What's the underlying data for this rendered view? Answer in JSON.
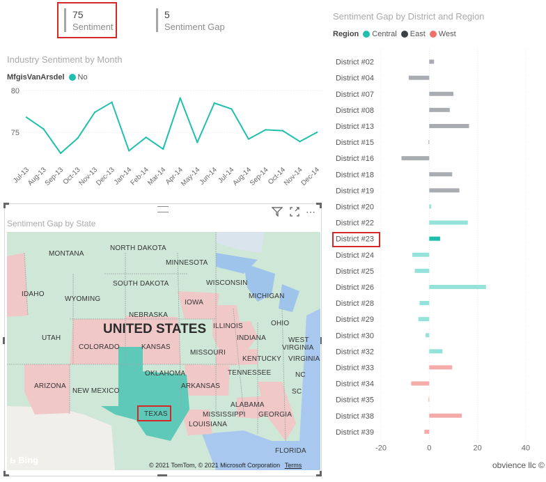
{
  "cards": [
    {
      "value": "75",
      "label": "Sentiment"
    },
    {
      "value": "5",
      "label": "Sentiment Gap"
    }
  ],
  "colors": {
    "teal": "#1fbfad",
    "teal_light": "#94e3db",
    "gray": "#a9acb0",
    "pink": "#f6abab",
    "dark": "#3c3f44",
    "west": "#f0716c",
    "highlight": "#d62728"
  },
  "chart_data": [
    {
      "type": "line",
      "title": "Industry Sentiment by Month",
      "legend_title": "MfgisVanArsdel",
      "legend": [
        {
          "name": "No",
          "color": "#1fbfad"
        }
      ],
      "x": [
        "Jul-13",
        "Aug-13",
        "Sep-13",
        "Oct-13",
        "Nov-13",
        "Dec-13",
        "Jan-14",
        "Feb-14",
        "Mar-14",
        "Apr-14",
        "May-14",
        "Jun-14",
        "Jul-14",
        "Aug-14",
        "Sep-14",
        "Oct-14",
        "Nov-14",
        "Dec-14"
      ],
      "series": [
        {
          "name": "No",
          "values": [
            76.8,
            75.4,
            72.5,
            74.3,
            77.4,
            78.6,
            72.8,
            74.4,
            73.0,
            79.1,
            73.8,
            78.5,
            77.8,
            74.2,
            75.3,
            75.2,
            73.9,
            75.0
          ]
        }
      ],
      "ylim": [
        71.5,
        80.5
      ],
      "yticks": [
        75,
        80
      ],
      "grid": true
    },
    {
      "type": "bar",
      "orientation": "horizontal",
      "title": "Sentiment Gap by District and Region",
      "legend_title": "Region",
      "legend": [
        {
          "name": "Central",
          "color": "#1fbfad"
        },
        {
          "name": "East",
          "color": "#3c3f44"
        },
        {
          "name": "West",
          "color": "#f0716c"
        }
      ],
      "categories": [
        "District #02",
        "District #04",
        "District #07",
        "District #08",
        "District #13",
        "District #15",
        "District #16",
        "District #18",
        "District #19",
        "District #20",
        "District #22",
        "District #23",
        "District #24",
        "District #25",
        "District #26",
        "District #28",
        "District #29",
        "District #30",
        "District #32",
        "District #33",
        "District #34",
        "District #35",
        "District #38",
        "District #39"
      ],
      "values": [
        2,
        -8.5,
        10,
        8.5,
        16.5,
        -0.3,
        -11.5,
        9.5,
        12.5,
        0.8,
        16,
        4.5,
        -7,
        -6,
        23.5,
        -4,
        -4.5,
        -1.5,
        5.5,
        9.5,
        -7.5,
        -0.3,
        13.5,
        -2
      ],
      "regions": [
        "East",
        "East",
        "East",
        "East",
        "East",
        "East",
        "East",
        "East",
        "East",
        "Central",
        "Central",
        "Central",
        "Central",
        "Central",
        "Central",
        "Central",
        "Central",
        "Central",
        "Central",
        "West",
        "West",
        "West",
        "West",
        "West"
      ],
      "highlighted": "District #23",
      "xlim": [
        -20,
        40
      ],
      "xticks": [
        -20,
        0,
        20,
        40
      ],
      "grid": true
    }
  ],
  "map": {
    "title": "Sentiment Gap by State",
    "country_label": "UNITED STATES",
    "selected_state": "TEXAS",
    "states": [
      "NORTH DAKOTA",
      "MONTANA",
      "MINNESOTA",
      "SOUTH DAKOTA",
      "WISCONSIN",
      "IDAHO",
      "WYOMING",
      "MICHIGAN",
      "IOWA",
      "NEBRASKA",
      "ILLINOIS",
      "OHIO",
      "UTAH",
      "INDIANA",
      "WEST",
      "VIRGINIA",
      "COLORADO",
      "KANSAS",
      "MISSOURI",
      "KENTUCKY",
      "VIRGINIA",
      "OKLAHOMA",
      "TENNESSEE",
      "NC",
      "ARIZONA",
      "NEW MEXICO",
      "ARKANSAS",
      "SC",
      "ALABAMA",
      "MISSISSIPPI",
      "GEORGIA",
      "LOUISIANA",
      "FLORIDA",
      "TEXAS"
    ],
    "attribution": "© 2021 TomTom, © 2021 Microsoft Corporation",
    "terms": "Terms",
    "logo": "Bing"
  },
  "footer": "obvience llc ©"
}
